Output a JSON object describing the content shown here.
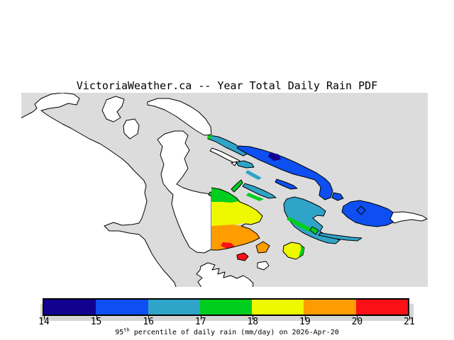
{
  "title": "VictoriaWeather.ca -- Year Total Daily Rain PDF",
  "palette": {
    "c14_15": "#120090",
    "c15_16": "#0D4FF0",
    "c16_17": "#30A4C8",
    "c17_18": "#00CE1E",
    "c18_19": "#EEF900",
    "c19_20": "#FF9C00",
    "c20_21": "#FA1015",
    "water": "#DCDCDC",
    "land": "#FFFFFF",
    "coastline": "#000000",
    "legend_shadow": "#D6D6D6",
    "text": "#000000"
  },
  "legend": {
    "ticks": [
      "14",
      "15",
      "16",
      "17",
      "18",
      "19",
      "20",
      "21"
    ],
    "segment_ranges": [
      "14-15",
      "15-16",
      "16-17",
      "17-18",
      "18-19",
      "19-20",
      "20-21"
    ],
    "segment_colors": [
      "#120090",
      "#0D4FF0",
      "#30A4C8",
      "#00CE1E",
      "#EEF900",
      "#FF9C00",
      "#FA1015"
    ],
    "units": "mm/day",
    "caption": {
      "prefix": "95",
      "sup": "th",
      "rest": " percentile of daily rain (mm/day) on 2026-Apr-20"
    }
  },
  "chart_data": {
    "type": "heatmap",
    "title": "VictoriaWeather.ca -- Year Total Daily Rain PDF",
    "legend_ticks": [
      14,
      15,
      16,
      17,
      18,
      19,
      20,
      21
    ],
    "legend_range": [
      14,
      21
    ],
    "units": "mm/day",
    "caption": "95th percentile of daily rain (mm/day) on 2026-Apr-20"
  }
}
